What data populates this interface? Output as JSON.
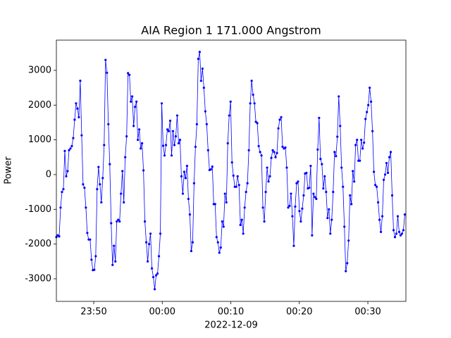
{
  "chart_data": {
    "type": "line",
    "title": "AIA Region 1 171.000 Angstrom",
    "xlabel": "2022-12-09",
    "ylabel": "Power",
    "color": "#0000ff",
    "grid": false,
    "xlim": [
      -15.45,
      35.55
    ],
    "ylim": [
      -3650,
      3870
    ],
    "xticks": [
      {
        "value": -10,
        "label": "23:50"
      },
      {
        "value": 0,
        "label": "00:00"
      },
      {
        "value": 10,
        "label": "00:10"
      },
      {
        "value": 20,
        "label": "00:20"
      },
      {
        "value": 30,
        "label": "00:30"
      }
    ],
    "yticks": [
      -3000,
      -2000,
      -1000,
      0,
      1000,
      2000,
      3000
    ],
    "x": [
      -15.45,
      -15.245,
      -15.04,
      -14.835,
      -14.63,
      -14.425,
      -14.22,
      -14.015,
      -13.81,
      -13.605,
      -13.4,
      -13.195,
      -12.99,
      -12.785,
      -12.58,
      -12.375,
      -12.17,
      -11.965,
      -11.76,
      -11.555,
      -11.35,
      -11.145,
      -10.94,
      -10.735,
      -10.53,
      -10.325,
      -10.12,
      -9.915,
      -9.71,
      -9.505,
      -9.3,
      -9.095,
      -8.89,
      -8.685,
      -8.48,
      -8.275,
      -8.07,
      -7.865,
      -7.66,
      -7.455,
      -7.25,
      -7.045,
      -6.84,
      -6.635,
      -6.43,
      -6.225,
      -6.02,
      -5.815,
      -5.61,
      -5.405,
      -5.2,
      -4.995,
      -4.79,
      -4.585,
      -4.38,
      -4.175,
      -3.97,
      -3.765,
      -3.56,
      -3.355,
      -3.15,
      -2.945,
      -2.74,
      -2.535,
      -2.33,
      -2.125,
      -1.92,
      -1.715,
      -1.51,
      -1.305,
      -1.1,
      -0.895,
      -0.69,
      -0.485,
      -0.28,
      -0.075,
      0.13,
      0.335,
      0.54,
      0.745,
      0.95,
      1.155,
      1.36,
      1.565,
      1.77,
      1.975,
      2.18,
      2.385,
      2.59,
      2.795,
      3,
      3.205,
      3.41,
      3.615,
      3.82,
      4.025,
      4.23,
      4.435,
      4.64,
      4.845,
      5.05,
      5.255,
      5.46,
      5.665,
      5.87,
      6.075,
      6.28,
      6.485,
      6.69,
      6.895,
      7.1,
      7.305,
      7.51,
      7.715,
      7.92,
      8.125,
      8.33,
      8.535,
      8.74,
      8.945,
      9.15,
      9.355,
      9.56,
      9.765,
      9.97,
      10.175,
      10.38,
      10.585,
      10.79,
      10.995,
      11.2,
      11.405,
      11.61,
      11.815,
      12.02,
      12.225,
      12.43,
      12.635,
      12.84,
      13.045,
      13.25,
      13.455,
      13.66,
      13.865,
      14.07,
      14.275,
      14.48,
      14.685,
      14.89,
      15.095,
      15.3,
      15.505,
      15.71,
      15.915,
      16.12,
      16.325,
      16.53,
      16.735,
      16.94,
      17.145,
      17.35,
      17.555,
      17.76,
      17.965,
      18.17,
      18.375,
      18.58,
      18.785,
      18.99,
      19.195,
      19.4,
      19.605,
      19.81,
      20.015,
      20.22,
      20.425,
      20.63,
      20.835,
      21.04,
      21.245,
      21.45,
      21.655,
      21.86,
      22.065,
      22.27,
      22.475,
      22.68,
      22.885,
      23.09,
      23.295,
      23.5,
      23.705,
      23.91,
      24.115,
      24.32,
      24.525,
      24.73,
      24.935,
      25.14,
      25.345,
      25.55,
      25.755,
      25.96,
      26.165,
      26.37,
      26.575,
      26.78,
      26.985,
      27.19,
      27.395,
      27.6,
      27.805,
      28.01,
      28.215,
      28.42,
      28.625,
      28.83,
      29.035,
      29.24,
      29.445,
      29.65,
      29.855,
      30.06,
      30.265,
      30.47,
      30.675,
      30.88,
      31.085,
      31.29,
      31.495,
      31.7,
      31.905,
      32.11,
      32.315,
      32.52,
      32.725,
      32.93,
      33.135,
      33.34,
      33.545,
      33.75,
      33.955,
      34.16,
      34.365,
      34.57,
      34.775,
      34.98,
      35.185,
      35.39
    ],
    "values": [
      -1800,
      -1750,
      -1780,
      -950,
      -500,
      -420,
      680,
      -50,
      100,
      700,
      750,
      820,
      1050,
      1580,
      2050,
      1900,
      1650,
      2700,
      1130,
      -280,
      -380,
      -950,
      -1680,
      -1870,
      -1870,
      -2450,
      -2750,
      -2740,
      -2350,
      -420,
      220,
      -280,
      -800,
      -100,
      850,
      3300,
      2930,
      1450,
      300,
      -1400,
      -2600,
      -2050,
      -2500,
      -1350,
      -1300,
      -1350,
      -550,
      100,
      -800,
      500,
      1100,
      2920,
      2870,
      2100,
      2250,
      1400,
      1950,
      2100,
      1000,
      1300,
      750,
      900,
      120,
      -1350,
      -1950,
      -2500,
      -2000,
      -1700,
      -2700,
      -2950,
      -3300,
      -2900,
      -2850,
      -2350,
      -1700,
      2050,
      830,
      550,
      850,
      1300,
      1250,
      1550,
      550,
      1250,
      850,
      1100,
      1700,
      900,
      1000,
      -50,
      -550,
      80,
      -100,
      250,
      -700,
      -1150,
      -2200,
      -1950,
      -250,
      800,
      1450,
      3330,
      3530,
      2700,
      3050,
      2500,
      1820,
      1450,
      700,
      130,
      150,
      230,
      -850,
      -850,
      -1800,
      -1950,
      -2250,
      -2100,
      -1350,
      -1500,
      -550,
      -800,
      900,
      1700,
      2100,
      350,
      -30,
      -350,
      -350,
      -50,
      -300,
      -1450,
      -1300,
      -1700,
      -950,
      -500,
      -250,
      700,
      2050,
      2700,
      2300,
      2050,
      1520,
      1480,
      820,
      650,
      550,
      -950,
      -1350,
      -500,
      200,
      -200,
      -50,
      480,
      700,
      650,
      500,
      620,
      1330,
      1580,
      1650,
      800,
      750,
      780,
      200,
      -950,
      -900,
      -550,
      -1200,
      -2050,
      -920,
      -250,
      -200,
      -1050,
      -1350,
      -980,
      -600,
      30,
      50,
      -400,
      -380,
      250,
      -1750,
      -550,
      -650,
      -700,
      720,
      1630,
      450,
      300,
      -400,
      -50,
      -500,
      -1250,
      -1000,
      -1700,
      -1300,
      -500,
      650,
      530,
      1090,
      2250,
      1400,
      200,
      -350,
      -1500,
      -2780,
      -2550,
      -1900,
      -600,
      -850,
      100,
      -200,
      850,
      1000,
      400,
      400,
      1000,
      750,
      920,
      1600,
      1800,
      2000,
      2500,
      2100,
      1250,
      80,
      -300,
      -350,
      -800,
      -1300,
      -1650,
      -1200,
      -150,
      0,
      330,
      50,
      500,
      650,
      -600,
      -1600,
      -1800,
      -1700,
      -1200,
      -1650,
      -1750,
      -1700,
      -1600,
      -1150
    ]
  }
}
